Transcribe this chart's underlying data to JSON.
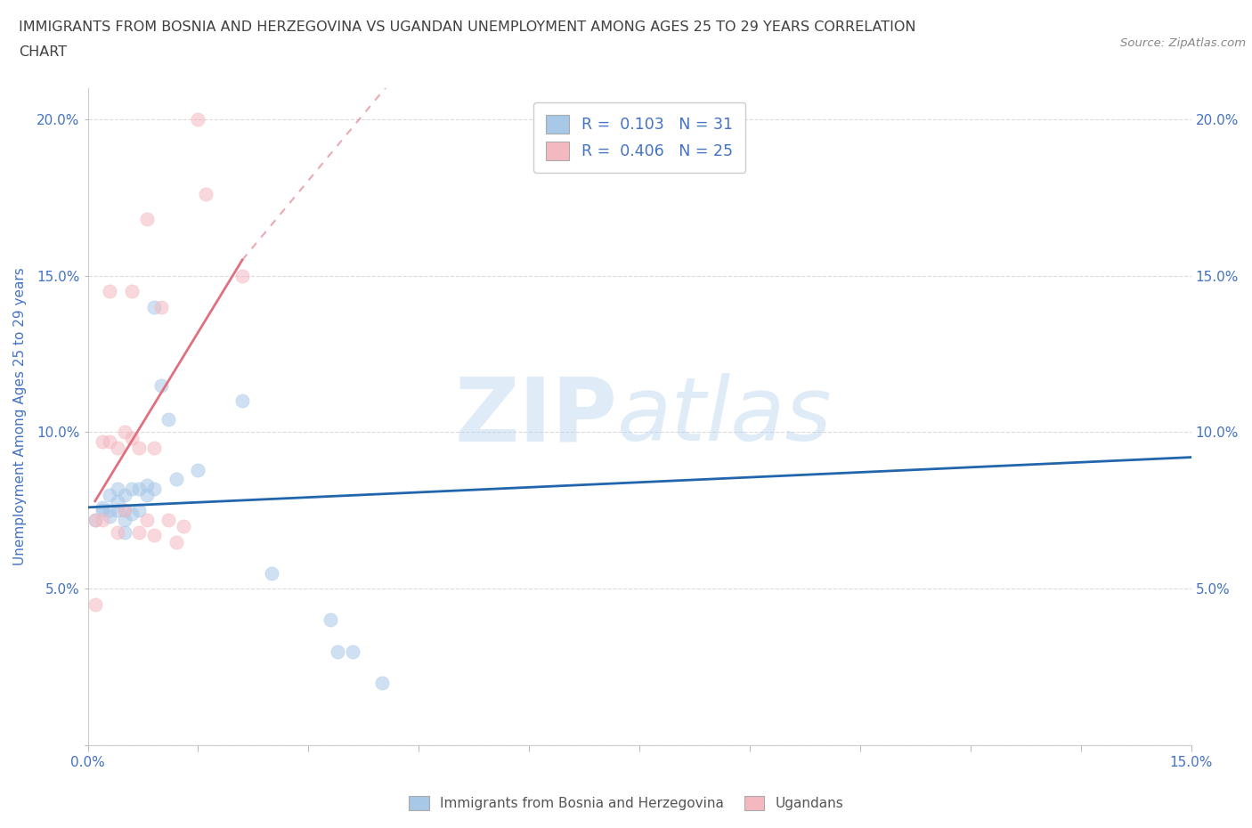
{
  "title_line1": "IMMIGRANTS FROM BOSNIA AND HERZEGOVINA VS UGANDAN UNEMPLOYMENT AMONG AGES 25 TO 29 YEARS CORRELATION",
  "title_line2": "CHART",
  "source_text": "Source: ZipAtlas.com",
  "ylabel": "Unemployment Among Ages 25 to 29 years",
  "xlim": [
    0,
    0.15
  ],
  "ylim": [
    0,
    0.21
  ],
  "xticks": [
    0.0,
    0.015,
    0.03,
    0.045,
    0.06,
    0.075,
    0.09,
    0.105,
    0.12,
    0.135,
    0.15
  ],
  "xtick_labels_sparse": {
    "0": "0.0%",
    "10": "15.0%"
  },
  "yticks": [
    0.0,
    0.05,
    0.1,
    0.15,
    0.2
  ],
  "ytick_labels": [
    "",
    "5.0%",
    "10.0%",
    "15.0%",
    "20.0%"
  ],
  "blue_scatter_x": [
    0.001,
    0.002,
    0.002,
    0.003,
    0.003,
    0.003,
    0.004,
    0.004,
    0.004,
    0.005,
    0.005,
    0.005,
    0.005,
    0.006,
    0.006,
    0.007,
    0.007,
    0.008,
    0.008,
    0.009,
    0.009,
    0.01,
    0.011,
    0.012,
    0.015,
    0.021,
    0.025,
    0.033,
    0.034,
    0.036,
    0.04
  ],
  "blue_scatter_y": [
    0.072,
    0.076,
    0.075,
    0.073,
    0.075,
    0.08,
    0.075,
    0.078,
    0.082,
    0.075,
    0.08,
    0.072,
    0.068,
    0.074,
    0.082,
    0.082,
    0.075,
    0.083,
    0.08,
    0.082,
    0.14,
    0.115,
    0.104,
    0.085,
    0.088,
    0.11,
    0.055,
    0.04,
    0.03,
    0.03,
    0.02
  ],
  "pink_scatter_x": [
    0.001,
    0.001,
    0.002,
    0.002,
    0.003,
    0.003,
    0.004,
    0.004,
    0.005,
    0.005,
    0.006,
    0.006,
    0.007,
    0.007,
    0.008,
    0.008,
    0.009,
    0.009,
    0.01,
    0.011,
    0.012,
    0.013,
    0.015,
    0.016,
    0.021
  ],
  "pink_scatter_y": [
    0.045,
    0.072,
    0.072,
    0.097,
    0.145,
    0.097,
    0.068,
    0.095,
    0.1,
    0.075,
    0.145,
    0.098,
    0.095,
    0.068,
    0.168,
    0.072,
    0.067,
    0.095,
    0.14,
    0.072,
    0.065,
    0.07,
    0.2,
    0.176,
    0.15
  ],
  "blue_R": 0.103,
  "blue_N": 31,
  "pink_R": 0.406,
  "pink_N": 25,
  "blue_dot_color": "#a8c8e8",
  "pink_dot_color": "#f4b8c0",
  "blue_line_color": "#2166ac",
  "pink_line_color": "#e07080",
  "legend_label_blue": "Immigrants from Bosnia and Herzegovina",
  "legend_label_pink": "Ugandans",
  "watermark_part1": "ZIP",
  "watermark_part2": "atlas",
  "background_color": "#ffffff",
  "grid_color": "#d8d8d8",
  "title_color": "#404040",
  "axis_color": "#4472c4",
  "marker_size": 120,
  "marker_alpha": 0.55
}
